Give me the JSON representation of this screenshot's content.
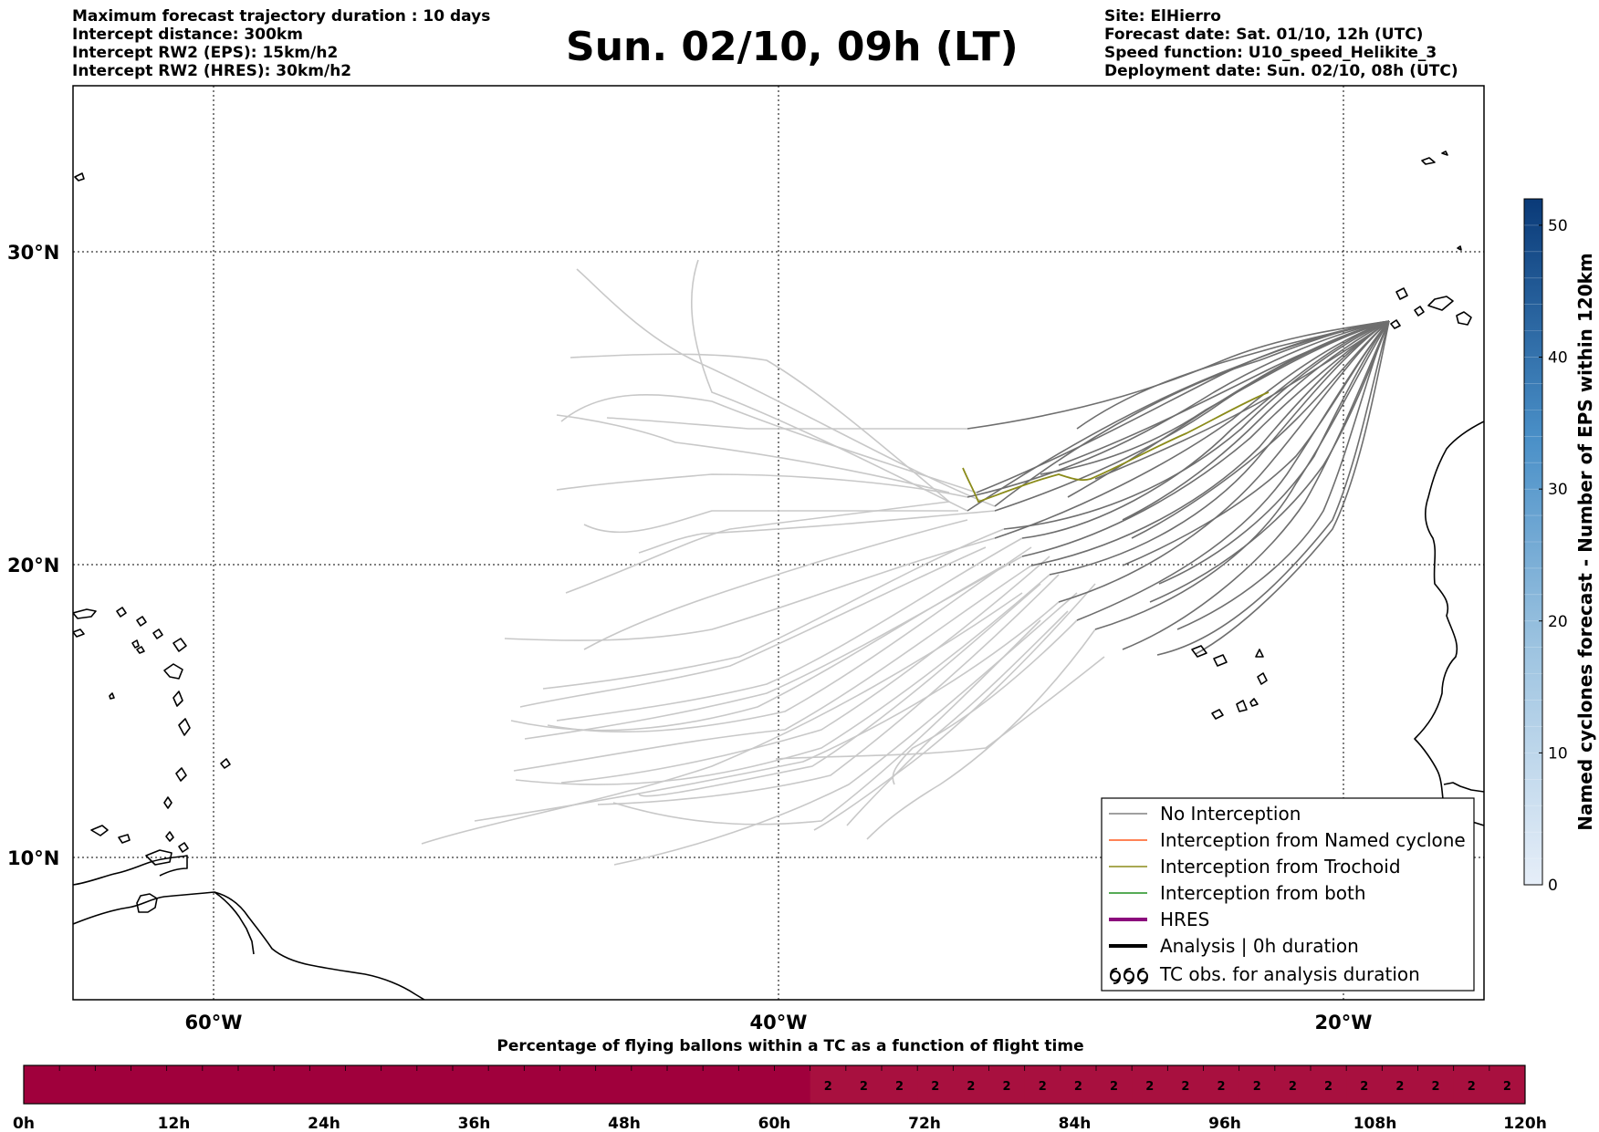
{
  "header_left": [
    "Maximum forecast trajectory duration : 10 days",
    "Intercept distance: 300km",
    "Intercept RW2 (EPS):  15km/h2",
    "Intercept RW2 (HRES): 30km/h2"
  ],
  "title": "Sun. 02/10, 09h (LT)",
  "header_right": [
    "Site: ElHierro",
    "Forecast date: Sat. 01/10, 12h (UTC)",
    "Speed function: U10_speed_Helikite_3",
    "Deployment date: Sun. 02/10, 08h (UTC)"
  ],
  "map": {
    "lat_labels": [
      "30°N",
      "20°N",
      "10°N"
    ],
    "lon_labels": [
      "60°W",
      "40°W",
      "20°W"
    ],
    "lat_ticks": [
      30,
      20,
      10
    ],
    "lon_ticks": [
      -60,
      -40,
      -20
    ],
    "lon_range": [
      -65,
      -15
    ],
    "lat_range": [
      5.4,
      34.7
    ],
    "colors": {
      "eps_late": "#c8c8c8",
      "eps_early": "#6e6e6e",
      "trochoid": "#8b8b1a",
      "coast": "#000000"
    }
  },
  "legend": {
    "items": [
      {
        "label": "No Interception",
        "color": "#808080",
        "style": "thin"
      },
      {
        "label": "Interception from Named cyclone",
        "color": "#ff5a1f",
        "style": "thin"
      },
      {
        "label": "Interception from Trochoid",
        "color": "#8b8b1a",
        "style": "thin"
      },
      {
        "label": "Interception from both",
        "color": "#1f8f1f",
        "style": "thin"
      },
      {
        "label": "HRES",
        "color": "#8b0a7c",
        "style": "thick"
      },
      {
        "label": "Analysis | 0h duration",
        "color": "#000000",
        "style": "thick"
      },
      {
        "label": "TC obs. for analysis duration",
        "color": "#000000",
        "style": "symbol"
      }
    ]
  },
  "colorbar": {
    "label": "Named cyclones forecast - Number of EPS within 120km",
    "ticks": [
      0,
      10,
      20,
      30,
      40,
      50
    ],
    "range": [
      0,
      52
    ],
    "color_low": "#e6eef8",
    "color_high": "#0a3a78"
  },
  "bottom_bar": {
    "title": "Percentage of flying ballons within a TC as a function of flight time",
    "tick_labels": [
      "0h",
      "12h",
      "24h",
      "36h",
      "48h",
      "60h",
      "72h",
      "84h",
      "96h",
      "108h",
      "120h"
    ],
    "hours_per_cell": 3,
    "cells": [
      0,
      0,
      0,
      0,
      0,
      0,
      0,
      0,
      0,
      0,
      0,
      0,
      0,
      0,
      0,
      0,
      0,
      0,
      0,
      0,
      0,
      0,
      2,
      2,
      2,
      2,
      2,
      2,
      2,
      2,
      2,
      2,
      2,
      2,
      2,
      2,
      2,
      2,
      2,
      2,
      2,
      2
    ],
    "color_zero": "#a0003c",
    "color_two": "#a8103f"
  }
}
